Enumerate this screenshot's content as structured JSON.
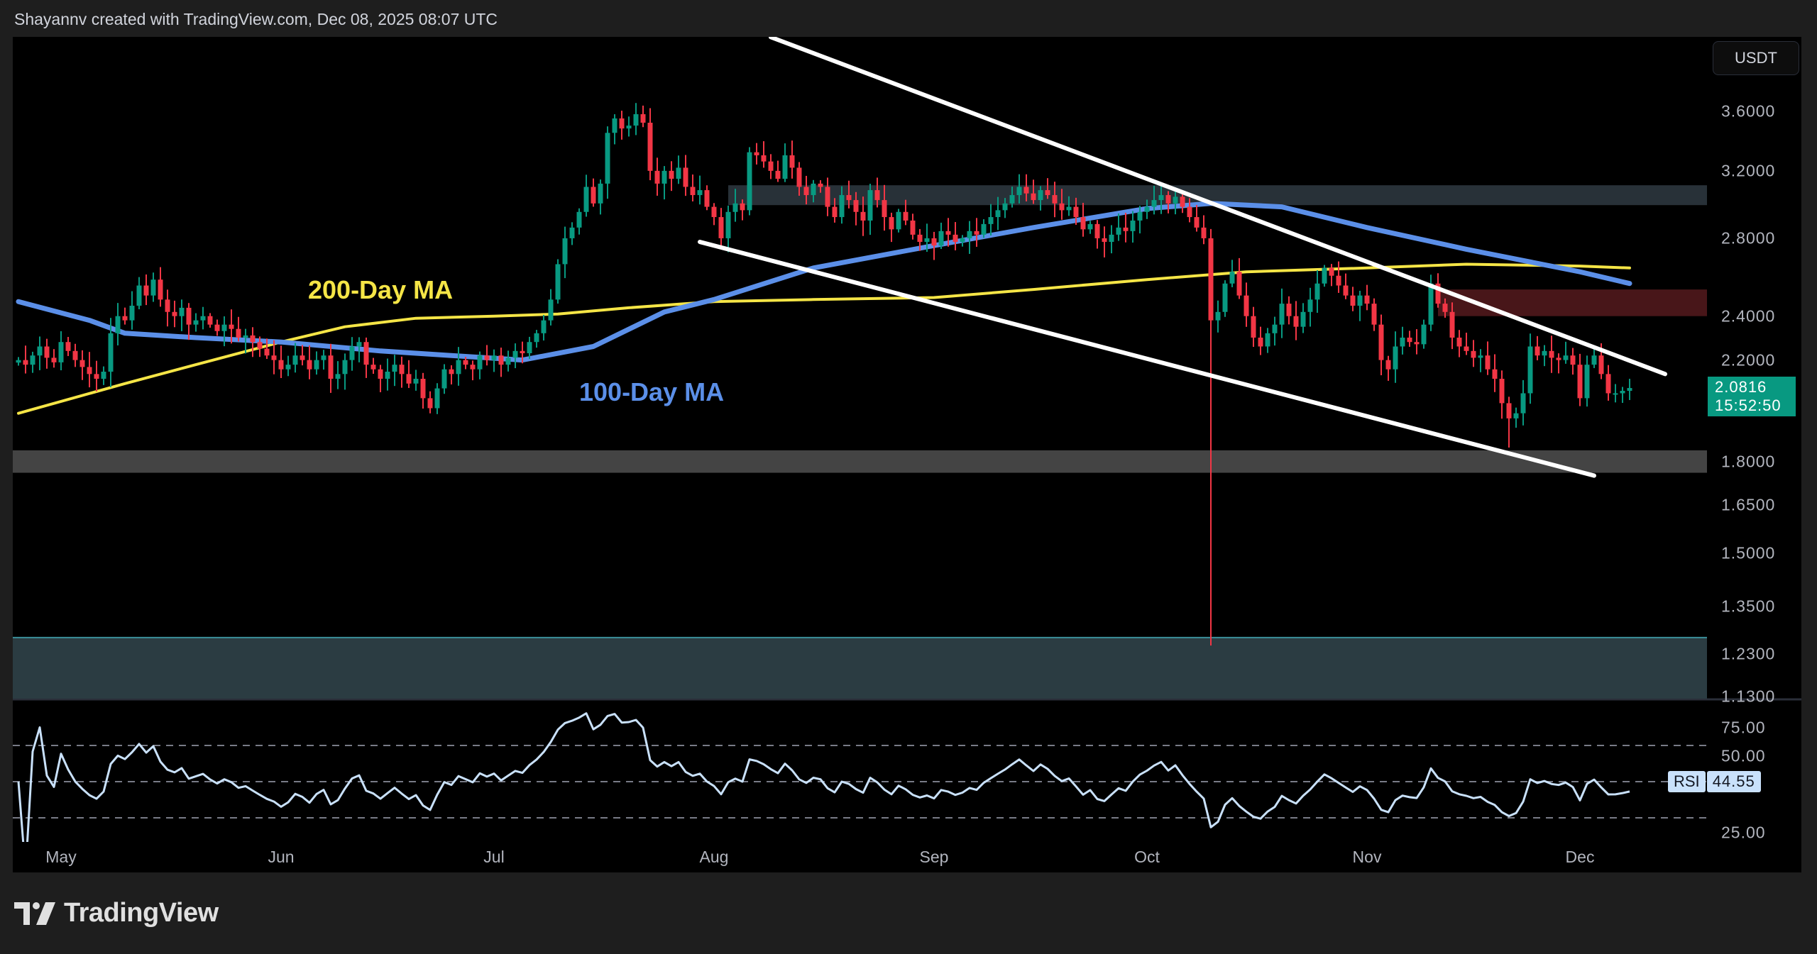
{
  "header": {
    "text": "Shayannv created with TradingView.com, Dec 08, 2025 08:07 UTC"
  },
  "currency_button": "USDT",
  "price_tag": {
    "price": "2.0816",
    "countdown": "15:52:50"
  },
  "rsi_tag": {
    "label": "RSI",
    "value": "44.55"
  },
  "footer": {
    "brand": "TradingView"
  },
  "annotations": {
    "ma200_label": "200-Day MA",
    "ma100_label": "100-Day MA"
  },
  "colors": {
    "up": "#089981",
    "down": "#f23645",
    "ma200": "#f5e546",
    "ma100": "#5b8fe8",
    "trendline": "#ffffff",
    "rsi": "#c9e1fb",
    "resistance_zone": "#2f3a42",
    "supply_zone": "#4a1a1c",
    "support_band": "#444444",
    "demand_zone": "#2b3c42"
  },
  "chart_data": {
    "type": "candlestick",
    "year": 2025,
    "price_axis": {
      "scale": "log",
      "ticks": [
        "3.6000",
        "3.2000",
        "2.8000",
        "2.4000",
        "2.2000",
        "1.8000",
        "1.6500",
        "1.5000",
        "1.3500",
        "1.2300",
        "1.1300"
      ]
    },
    "time_axis": {
      "ticks": [
        "May",
        "Jun",
        "Jul",
        "Aug",
        "Sep",
        "Oct",
        "Nov",
        "Dec"
      ]
    },
    "closes_by_month": [
      {
        "month": "Apr",
        "from_day": 25,
        "closes": [
          2.2,
          2.18,
          2.22,
          2.26,
          2.21,
          2.19
        ]
      },
      {
        "month": "May",
        "from_day": 1,
        "closes": [
          2.28,
          2.24,
          2.2,
          2.17,
          2.14,
          2.12,
          2.15,
          2.32,
          2.4,
          2.38,
          2.45,
          2.55,
          2.5,
          2.58,
          2.48,
          2.42,
          2.4,
          2.44,
          2.36,
          2.38,
          2.4,
          2.36,
          2.33,
          2.36,
          2.34,
          2.3,
          2.31,
          2.28,
          2.25,
          2.22,
          2.2
        ]
      },
      {
        "month": "Jun",
        "from_day": 1,
        "closes": [
          2.16,
          2.18,
          2.22,
          2.2,
          2.16,
          2.2,
          2.22,
          2.12,
          2.14,
          2.2,
          2.26,
          2.28,
          2.18,
          2.16,
          2.12,
          2.15,
          2.18,
          2.14,
          2.1,
          2.12,
          2.04,
          2.0,
          2.08,
          2.16,
          2.14,
          2.2,
          2.18,
          2.16,
          2.22,
          2.2
        ]
      },
      {
        "month": "Jul",
        "from_day": 1,
        "closes": [
          2.22,
          2.18,
          2.21,
          2.24,
          2.23,
          2.28,
          2.32,
          2.38,
          2.48,
          2.66,
          2.8,
          2.86,
          2.95,
          3.1,
          3.0,
          3.12,
          3.45,
          3.55,
          3.48,
          3.5,
          3.58,
          3.52,
          3.2,
          3.12,
          3.2,
          3.15,
          3.22,
          3.1,
          3.05,
          3.08,
          2.98
        ]
      },
      {
        "month": "Aug",
        "from_day": 1,
        "closes": [
          2.92,
          2.8,
          2.95,
          3.0,
          2.96,
          3.32,
          3.3,
          3.26,
          3.2,
          3.15,
          3.3,
          3.22,
          3.1,
          3.05,
          3.12,
          3.1,
          2.98,
          2.92,
          3.05,
          3.02,
          2.95,
          2.9,
          3.08,
          3.02,
          2.92,
          2.85,
          2.95,
          2.9,
          2.82,
          2.78,
          2.8
        ]
      },
      {
        "month": "Sep",
        "from_day": 1,
        "closes": [
          2.76,
          2.84,
          2.82,
          2.78,
          2.8,
          2.84,
          2.82,
          2.88,
          2.92,
          2.96,
          3.0,
          3.05,
          3.1,
          3.06,
          3.02,
          3.08,
          3.05,
          3.0,
          2.96,
          2.98,
          2.92,
          2.85,
          2.88,
          2.8,
          2.78,
          2.82,
          2.86,
          2.84,
          2.9,
          2.95
        ]
      },
      {
        "month": "Oct",
        "from_day": 1,
        "closes": [
          2.98,
          3.02,
          3.05,
          3.0,
          3.04,
          2.98,
          2.92,
          2.86,
          2.8,
          2.38,
          2.42,
          2.56,
          2.62,
          2.5,
          2.4,
          2.3,
          2.26,
          2.32,
          2.36,
          2.46,
          2.4,
          2.35,
          2.42,
          2.48,
          2.56,
          2.64,
          2.6,
          2.55,
          2.5,
          2.45,
          2.5
        ]
      },
      {
        "month": "Nov",
        "from_day": 1,
        "closes": [
          2.46,
          2.36,
          2.2,
          2.16,
          2.26,
          2.3,
          2.28,
          2.27,
          2.36,
          2.56,
          2.46,
          2.42,
          2.3,
          2.26,
          2.24,
          2.21,
          2.22,
          2.16,
          2.12,
          2.02,
          1.96,
          1.98,
          2.06,
          2.26,
          2.22,
          2.24,
          2.21,
          2.2,
          2.22,
          2.18
        ]
      },
      {
        "month": "Dec",
        "from_day": 1,
        "closes": [
          2.04,
          2.18,
          2.22,
          2.14,
          2.06,
          2.06,
          2.07,
          2.0816
        ]
      }
    ],
    "wick_extremes": [
      {
        "date": "Oct 10",
        "low": 1.25
      },
      {
        "date": "Jul 21",
        "high": 3.66
      },
      {
        "date": "Nov 21",
        "low": 1.85
      }
    ],
    "ma200": [
      [
        "Apr 25",
        1.98
      ],
      [
        "May 10",
        2.1
      ],
      [
        "May 20",
        2.18
      ],
      [
        "Jun 1",
        2.28
      ],
      [
        "Jun 10",
        2.35
      ],
      [
        "Jun 20",
        2.39
      ],
      [
        "Jul 1",
        2.4
      ],
      [
        "Jul 10",
        2.41
      ],
      [
        "Jul 20",
        2.44
      ],
      [
        "Aug 1",
        2.47
      ],
      [
        "Aug 15",
        2.48
      ],
      [
        "Sep 1",
        2.49
      ],
      [
        "Sep 15",
        2.53
      ],
      [
        "Oct 1",
        2.58
      ],
      [
        "Oct 15",
        2.62
      ],
      [
        "Nov 1",
        2.64
      ],
      [
        "Nov 15",
        2.66
      ],
      [
        "Dec 1",
        2.65
      ],
      [
        "Dec 8",
        2.64
      ]
    ],
    "ma100": [
      [
        "Apr 25",
        2.47
      ],
      [
        "May 5",
        2.38
      ],
      [
        "May 10",
        2.32
      ],
      [
        "May 20",
        2.3
      ],
      [
        "Jun 1",
        2.28
      ],
      [
        "Jun 15",
        2.24
      ],
      [
        "Jun 25",
        2.22
      ],
      [
        "Jul 5",
        2.2
      ],
      [
        "Jul 15",
        2.26
      ],
      [
        "Jul 25",
        2.42
      ],
      [
        "Aug 1",
        2.48
      ],
      [
        "Aug 15",
        2.64
      ],
      [
        "Sep 1",
        2.76
      ],
      [
        "Sep 15",
        2.86
      ],
      [
        "Oct 1",
        2.97
      ],
      [
        "Oct 10",
        3.0
      ],
      [
        "Oct 20",
        2.98
      ],
      [
        "Nov 1",
        2.86
      ],
      [
        "Nov 15",
        2.74
      ],
      [
        "Dec 1",
        2.62
      ],
      [
        "Dec 8",
        2.56
      ]
    ],
    "trendlines": [
      {
        "from": [
          "Aug 9",
          4.17
        ],
        "to": [
          "Dec 13",
          2.14
        ]
      },
      {
        "from": [
          "Jul 30",
          2.78
        ],
        "to": [
          "Dec 3",
          1.75
        ]
      }
    ],
    "zones": [
      {
        "name": "resistance-zone",
        "from_date": "Aug 3",
        "top": 3.11,
        "bottom": 2.99,
        "color": "#2f3a42",
        "opacity": 0.85
      },
      {
        "name": "supply-zone",
        "from_date": "Nov 11",
        "top": 2.53,
        "bottom": 2.4,
        "color": "#5a1c1f",
        "opacity": 0.8
      },
      {
        "name": "support-band",
        "from_date": null,
        "top": 1.84,
        "bottom": 1.76,
        "color": "#444444",
        "opacity": 1
      },
      {
        "name": "demand-zone",
        "from_date": null,
        "top": 1.27,
        "bottom": 1.1,
        "color": "#2b3c42",
        "opacity": 1
      }
    ],
    "rsi": {
      "period": 14,
      "ticks": [
        "75.00",
        "50.00",
        "25.00"
      ],
      "bands": [
        70,
        50,
        30
      ],
      "last": 44.55
    }
  }
}
